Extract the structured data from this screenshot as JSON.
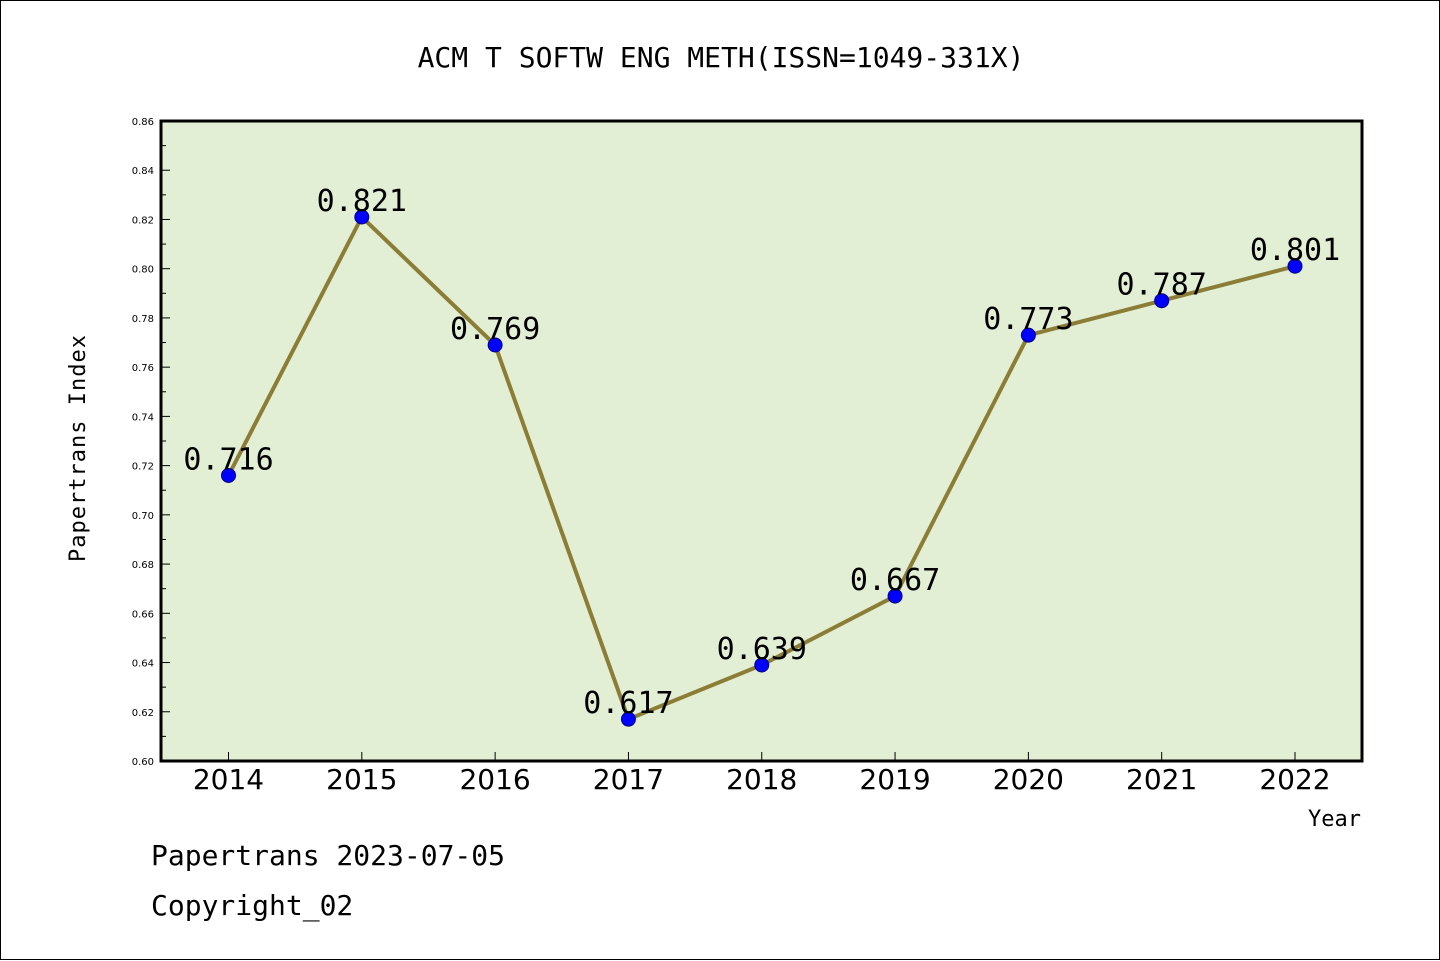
{
  "chart_data": {
    "type": "line",
    "title": "ACM T SOFTW ENG METH(ISSN=1049-331X)",
    "xlabel": "Year",
    "ylabel": "Papertrans Index",
    "categories": [
      "2014",
      "2015",
      "2016",
      "2017",
      "2018",
      "2019",
      "2020",
      "2021",
      "2022"
    ],
    "series": [
      {
        "values": [
          0.716,
          0.821,
          0.769,
          0.617,
          0.639,
          0.667,
          0.773,
          0.787,
          0.801
        ]
      }
    ],
    "data_labels": [
      "0.716",
      "0.821",
      "0.769",
      "0.617",
      "0.639",
      "0.667",
      "0.773",
      "0.787",
      "0.801"
    ],
    "ylim": [
      0.6,
      0.86
    ],
    "yticks": [
      "0.60",
      "0.62",
      "0.64",
      "0.66",
      "0.68",
      "0.70",
      "0.72",
      "0.74",
      "0.76",
      "0.78",
      "0.80",
      "0.82",
      "0.84",
      "0.86"
    ],
    "grid": false,
    "colors": {
      "plot_background": "#e2efd5",
      "line": "#8b7d35",
      "marker": "#0000ff",
      "marker_edge": "#000080"
    }
  },
  "footer": {
    "line1": "Papertrans 2023-07-05",
    "line2": "Copyright_02"
  }
}
